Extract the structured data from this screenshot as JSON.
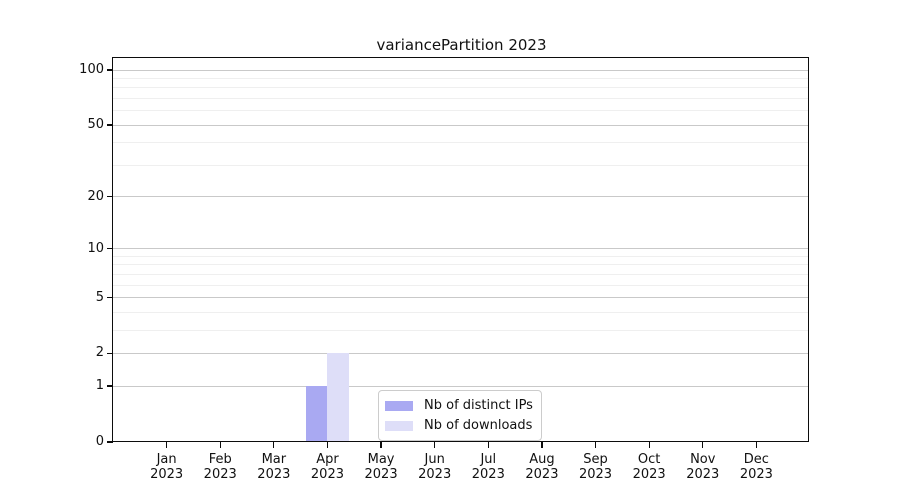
{
  "chart_data": {
    "type": "bar",
    "title": "variancePartition 2023",
    "categories": [
      "Jan 2023",
      "Feb 2023",
      "Mar 2023",
      "Apr 2023",
      "May 2023",
      "Jun 2023",
      "Jul 2023",
      "Aug 2023",
      "Sep 2023",
      "Oct 2023",
      "Nov 2023",
      "Dec 2023"
    ],
    "series": [
      {
        "name": "Nb of distinct IPs",
        "color": "#a9a9f2",
        "values": [
          0,
          0,
          0,
          1,
          0,
          0,
          0,
          0,
          0,
          0,
          0,
          0
        ]
      },
      {
        "name": "Nb of downloads",
        "color": "#dedef8",
        "values": [
          0,
          0,
          0,
          2,
          0,
          0,
          0,
          0,
          0,
          0,
          0,
          0
        ]
      }
    ],
    "yscale": "log1p",
    "ylim": [
      0,
      116
    ],
    "y_major_ticks": [
      0,
      1,
      2,
      5,
      10,
      20,
      50,
      100
    ],
    "y_minor_gridlines": [
      3,
      4,
      6,
      7,
      8,
      9,
      30,
      40,
      60,
      70,
      80,
      90
    ],
    "grid": "horizontal",
    "legend_position": "lower center",
    "xlabel": "",
    "ylabel": ""
  },
  "colors": {
    "background": "#ffffff",
    "axis": "#0c0c0c",
    "grid_major": "#c9c9c9",
    "grid_minor": "#efefef",
    "bar_distinct_ips": "#a9a9f2",
    "bar_downloads": "#dedef8",
    "legend_border": "#cccccc"
  }
}
